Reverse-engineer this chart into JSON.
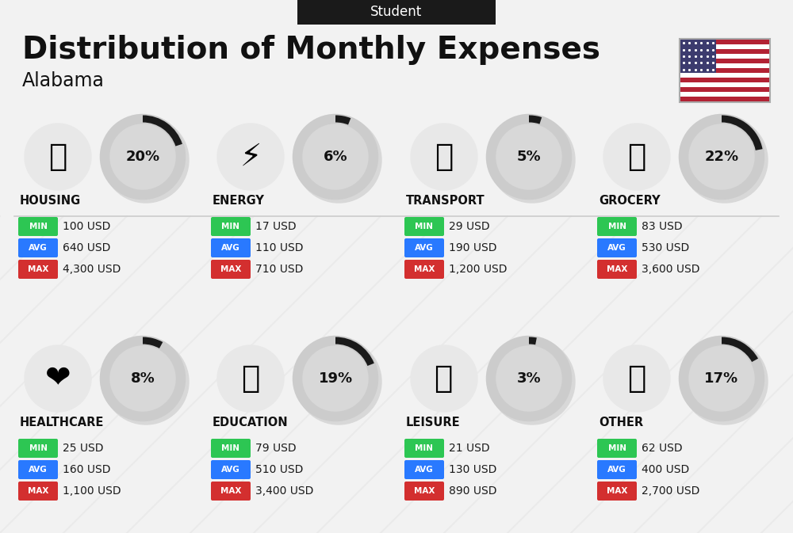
{
  "title": "Distribution of Monthly Expenses",
  "subtitle": "Student",
  "location": "Alabama",
  "bg_color": "#f2f2f2",
  "categories": [
    {
      "name": "HOUSING",
      "pct": 20,
      "min": "100 USD",
      "avg": "640 USD",
      "max": "4,300 USD",
      "row": 0,
      "col": 0,
      "emoji": "🏢"
    },
    {
      "name": "ENERGY",
      "pct": 6,
      "min": "17 USD",
      "avg": "110 USD",
      "max": "710 USD",
      "row": 0,
      "col": 1,
      "emoji": "⚡"
    },
    {
      "name": "TRANSPORT",
      "pct": 5,
      "min": "29 USD",
      "avg": "190 USD",
      "max": "1,200 USD",
      "row": 0,
      "col": 2,
      "emoji": "🚌"
    },
    {
      "name": "GROCERY",
      "pct": 22,
      "min": "83 USD",
      "avg": "530 USD",
      "max": "3,600 USD",
      "row": 0,
      "col": 3,
      "emoji": "🛒"
    },
    {
      "name": "HEALTHCARE",
      "pct": 8,
      "min": "25 USD",
      "avg": "160 USD",
      "max": "1,100 USD",
      "row": 1,
      "col": 0,
      "emoji": "❤️"
    },
    {
      "name": "EDUCATION",
      "pct": 19,
      "min": "79 USD",
      "avg": "510 USD",
      "max": "3,400 USD",
      "row": 1,
      "col": 1,
      "emoji": "🎓"
    },
    {
      "name": "LEISURE",
      "pct": 3,
      "min": "21 USD",
      "avg": "130 USD",
      "max": "890 USD",
      "row": 1,
      "col": 2,
      "emoji": "🛍️"
    },
    {
      "name": "OTHER",
      "pct": 17,
      "min": "62 USD",
      "avg": "400 USD",
      "max": "2,700 USD",
      "row": 1,
      "col": 3,
      "emoji": "💰"
    }
  ],
  "min_color": "#2dc653",
  "avg_color": "#2979ff",
  "max_color": "#d32f2f",
  "label_color": "#ffffff",
  "ring_bg_color": "#cccccc",
  "ring_fg_color": "#1a1a1a",
  "title_color": "#111111",
  "subtitle_bg": "#1a1a1a",
  "subtitle_fg": "#ffffff",
  "category_name_color": "#111111",
  "shadow_color": "#d8d8d8",
  "divider_color": "#cccccc"
}
